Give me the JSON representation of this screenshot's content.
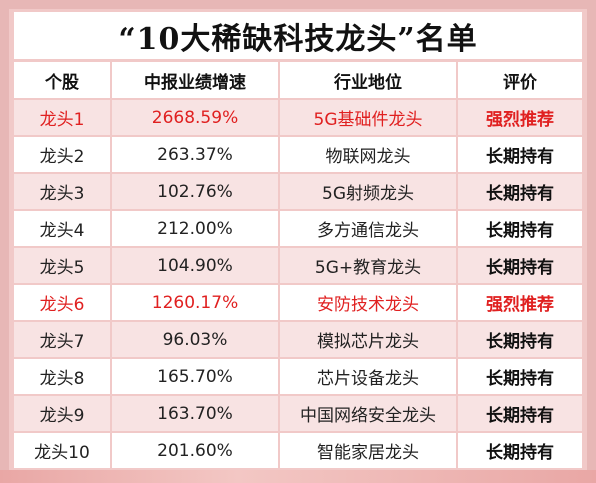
{
  "title": "“10大稀缺科技龙头”名单",
  "headers": [
    "个股",
    "中报业绩增速",
    "行业地位",
    "评价"
  ],
  "rows": [
    {
      "stock": "龙头1",
      "growth": "2668.59%",
      "position": "5G基础件龙头",
      "rating": "强烈推荐",
      "highlight": true
    },
    {
      "stock": "龙头2",
      "growth": "263.37%",
      "position": "物联网龙头",
      "rating": "长期持有",
      "highlight": false
    },
    {
      "stock": "龙头3",
      "growth": "102.76%",
      "position": "5G射频龙头",
      "rating": "长期持有",
      "highlight": false
    },
    {
      "stock": "龙头4",
      "growth": "212.00%",
      "position": "多方通信龙头",
      "rating": "长期持有",
      "highlight": false
    },
    {
      "stock": "龙头5",
      "growth": "104.90%",
      "position": "5G+教育龙头",
      "rating": "长期持有",
      "highlight": false
    },
    {
      "stock": "龙头6",
      "growth": "1260.17%",
      "position": "安防技术龙头",
      "rating": "强烈推荐",
      "highlight": true
    },
    {
      "stock": "龙头7",
      "growth": "96.03%",
      "position": "模拟芯片龙头",
      "rating": "长期持有",
      "highlight": false
    },
    {
      "stock": "龙头8",
      "growth": "165.70%",
      "position": "芯片设备龙头",
      "rating": "长期持有",
      "highlight": false
    },
    {
      "stock": "龙头9",
      "growth": "163.70%",
      "position": "中国网络安全龙头",
      "rating": "长期持有",
      "highlight": false
    },
    {
      "stock": "龙头10",
      "growth": "201.60%",
      "position": "智能家居龙头",
      "rating": "长期持有",
      "highlight": false
    }
  ],
  "colors": {
    "highlight": "#e02020",
    "background": "#f1c9c8"
  }
}
